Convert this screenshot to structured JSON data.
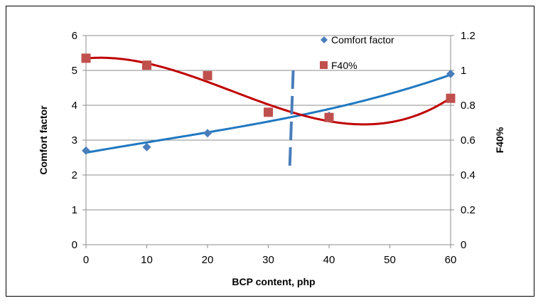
{
  "chart_data": {
    "type": "scatter",
    "title": "",
    "xlabel": "BCP content, php",
    "ylabel_left": "Comfort factor",
    "ylabel_right": "F40%",
    "x_ticks": [
      "0",
      "10",
      "20",
      "30",
      "40",
      "50",
      "60"
    ],
    "y_left_ticks": [
      "0",
      "1",
      "2",
      "3",
      "4",
      "5",
      "6"
    ],
    "y_right_ticks": [
      "0",
      "0.2",
      "0.4",
      "0.6",
      "0.8",
      "1",
      "1.2"
    ],
    "xlim": [
      0,
      60
    ],
    "ylim_left": [
      0,
      6
    ],
    "ylim_right": [
      0,
      1.2
    ],
    "grid": true,
    "legend_position": "top-right",
    "series": [
      {
        "name": "Comfort factor",
        "axis": "left",
        "marker": "diamond",
        "color": "#4a7ebb",
        "trend_color": "#1f78c1",
        "x": [
          0,
          10,
          20,
          30,
          40,
          60
        ],
        "y": [
          2.7,
          2.8,
          3.2,
          3.8,
          3.7,
          4.9
        ]
      },
      {
        "name": "F40%",
        "axis": "right",
        "marker": "square",
        "color": "#c0504d",
        "trend_color": "#c00000",
        "x": [
          0,
          10,
          20,
          30,
          40,
          60
        ],
        "y": [
          1.07,
          1.03,
          0.97,
          0.76,
          0.73,
          0.84
        ]
      }
    ],
    "annotation": {
      "type": "dashed-line",
      "color": "#4a7ebb",
      "x_start": 34.1,
      "y_start_left": 5.0,
      "x_end": 33.5,
      "y_end_left": 2.1
    }
  }
}
